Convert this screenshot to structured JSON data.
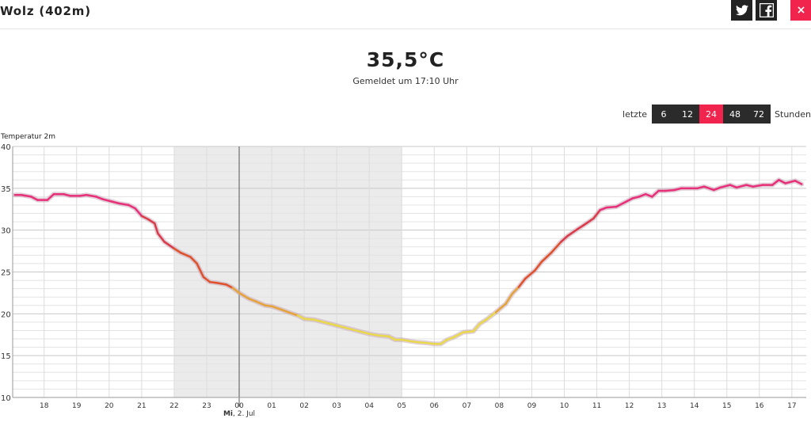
{
  "header": {
    "title": "Wolz (402m)"
  },
  "share": {
    "twitter_icon": "twitter-icon",
    "facebook_icon": "facebook-icon",
    "close_label": "×"
  },
  "current": {
    "value": "35,5°C",
    "reported": "Gemeldet um 17:10 Uhr"
  },
  "range": {
    "prefix": "letzte",
    "suffix": "Stunden",
    "options": [
      "6",
      "12",
      "24",
      "48",
      "72"
    ],
    "active": "24"
  },
  "colors": {
    "accent": "#f0244d",
    "night_shade": "#ebebeb",
    "warm": "#e8307a",
    "mid": "#e0502a",
    "cool": "#e8d84a"
  },
  "chart_data": {
    "type": "line",
    "ylabel": "Temperatur 2m",
    "ylim": [
      10,
      40
    ],
    "yticks": [
      10,
      15,
      20,
      25,
      30,
      35,
      40
    ],
    "x_range_hours": [
      -6.9,
      17.3
    ],
    "xticks": [
      {
        "h": -6,
        "label": "18"
      },
      {
        "h": -5,
        "label": "19"
      },
      {
        "h": -4,
        "label": "20"
      },
      {
        "h": -3,
        "label": "21"
      },
      {
        "h": -2,
        "label": "22"
      },
      {
        "h": -1,
        "label": "23"
      },
      {
        "h": 0,
        "label": "00"
      },
      {
        "h": 1,
        "label": "01"
      },
      {
        "h": 2,
        "label": "02"
      },
      {
        "h": 3,
        "label": "03"
      },
      {
        "h": 4,
        "label": "04"
      },
      {
        "h": 5,
        "label": "05"
      },
      {
        "h": 6,
        "label": "06"
      },
      {
        "h": 7,
        "label": "07"
      },
      {
        "h": 8,
        "label": "08"
      },
      {
        "h": 9,
        "label": "09"
      },
      {
        "h": 10,
        "label": "10"
      },
      {
        "h": 11,
        "label": "11"
      },
      {
        "h": 12,
        "label": "12"
      },
      {
        "h": 13,
        "label": "13"
      },
      {
        "h": 14,
        "label": "14"
      },
      {
        "h": 15,
        "label": "15"
      },
      {
        "h": 16,
        "label": "16"
      },
      {
        "h": 17,
        "label": "17"
      }
    ],
    "day_marker": {
      "h": 0,
      "weekday": "Mi",
      "date": "2. Jul"
    },
    "night_band": [
      -2,
      5
    ],
    "grid": true,
    "series": [
      {
        "points": [
          [
            -6.9,
            34.2
          ],
          [
            -6.7,
            34.2
          ],
          [
            -6.4,
            34.0
          ],
          [
            -6.2,
            33.6
          ],
          [
            -5.9,
            33.6
          ],
          [
            -5.7,
            34.3
          ],
          [
            -5.4,
            34.3
          ],
          [
            -5.2,
            34.1
          ],
          [
            -4.9,
            34.1
          ],
          [
            -4.7,
            34.2
          ],
          [
            -4.4,
            34.0
          ],
          [
            -4.2,
            33.7
          ],
          [
            -3.9,
            33.4
          ],
          [
            -3.7,
            33.2
          ],
          [
            -3.4,
            33.0
          ],
          [
            -3.2,
            32.6
          ],
          [
            -3.0,
            31.7
          ],
          [
            -2.8,
            31.3
          ],
          [
            -2.6,
            30.8
          ],
          [
            -2.5,
            29.6
          ],
          [
            -2.3,
            28.6
          ],
          [
            -2.0,
            27.8
          ],
          [
            -1.8,
            27.3
          ],
          [
            -1.5,
            26.8
          ],
          [
            -1.3,
            26.0
          ],
          [
            -1.1,
            24.4
          ],
          [
            -0.9,
            23.8
          ],
          [
            -0.7,
            23.7
          ],
          [
            -0.4,
            23.5
          ],
          [
            -0.2,
            23.1
          ],
          [
            0.0,
            22.5
          ],
          [
            0.3,
            21.8
          ],
          [
            0.5,
            21.5
          ],
          [
            0.8,
            21.0
          ],
          [
            1.0,
            20.9
          ],
          [
            1.3,
            20.5
          ],
          [
            1.5,
            20.2
          ],
          [
            1.8,
            19.8
          ],
          [
            2.0,
            19.4
          ],
          [
            2.3,
            19.3
          ],
          [
            2.5,
            19.1
          ],
          [
            2.8,
            18.8
          ],
          [
            3.0,
            18.6
          ],
          [
            3.3,
            18.3
          ],
          [
            3.5,
            18.1
          ],
          [
            3.8,
            17.8
          ],
          [
            4.0,
            17.6
          ],
          [
            4.3,
            17.4
          ],
          [
            4.6,
            17.3
          ],
          [
            4.8,
            16.9
          ],
          [
            5.0,
            16.9
          ],
          [
            5.3,
            16.7
          ],
          [
            5.5,
            16.6
          ],
          [
            5.8,
            16.5
          ],
          [
            6.0,
            16.4
          ],
          [
            6.2,
            16.4
          ],
          [
            6.4,
            16.9
          ],
          [
            6.6,
            17.2
          ],
          [
            6.9,
            17.8
          ],
          [
            7.2,
            17.9
          ],
          [
            7.4,
            18.8
          ],
          [
            7.6,
            19.3
          ],
          [
            7.9,
            20.2
          ],
          [
            8.2,
            21.2
          ],
          [
            8.4,
            22.4
          ],
          [
            8.6,
            23.2
          ],
          [
            8.8,
            24.2
          ],
          [
            9.1,
            25.2
          ],
          [
            9.3,
            26.2
          ],
          [
            9.6,
            27.3
          ],
          [
            9.9,
            28.6
          ],
          [
            10.1,
            29.3
          ],
          [
            10.4,
            30.1
          ],
          [
            10.6,
            30.6
          ],
          [
            10.9,
            31.4
          ],
          [
            11.1,
            32.4
          ],
          [
            11.3,
            32.7
          ],
          [
            11.6,
            32.8
          ],
          [
            11.9,
            33.4
          ],
          [
            12.1,
            33.8
          ],
          [
            12.3,
            34.0
          ],
          [
            12.5,
            34.3
          ],
          [
            12.7,
            34.0
          ],
          [
            12.9,
            34.7
          ],
          [
            13.1,
            34.7
          ],
          [
            13.4,
            34.8
          ],
          [
            13.6,
            35.0
          ],
          [
            13.9,
            35.0
          ],
          [
            14.1,
            35.0
          ],
          [
            14.3,
            35.2
          ],
          [
            14.6,
            34.8
          ],
          [
            14.8,
            35.1
          ],
          [
            15.1,
            35.4
          ],
          [
            15.3,
            35.1
          ],
          [
            15.6,
            35.4
          ],
          [
            15.8,
            35.2
          ],
          [
            16.1,
            35.4
          ],
          [
            16.4,
            35.4
          ],
          [
            16.6,
            36.0
          ],
          [
            16.8,
            35.6
          ],
          [
            17.1,
            35.9
          ],
          [
            17.3,
            35.5
          ]
        ]
      }
    ]
  }
}
